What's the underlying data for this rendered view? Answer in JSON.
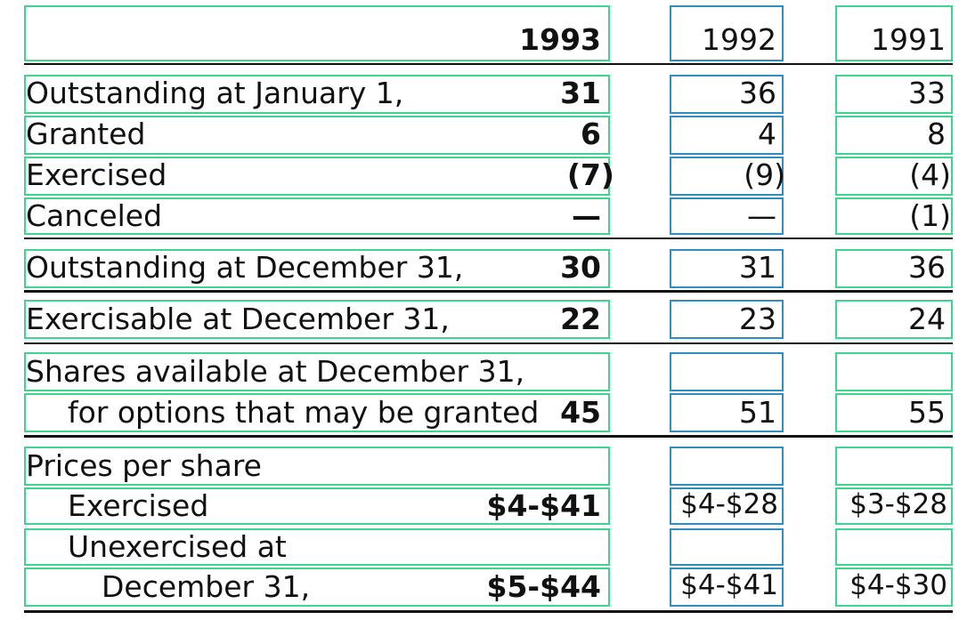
{
  "header": {
    "y1993": "1993",
    "y1992": "1992",
    "y1991": "1991"
  },
  "rows": [
    {
      "label": "Outstanding at January 1,",
      "v1993": "31",
      "v1992": "36",
      "v1991": "33"
    },
    {
      "label": "Granted",
      "v1993": "6",
      "v1992": "4",
      "v1991": "8"
    },
    {
      "label": "Exercised",
      "v1993": "(7)",
      "v1992": "(9)",
      "v1991": "(4)"
    },
    {
      "label": "Canceled",
      "v1993": "—",
      "v1992": "—",
      "v1991": "(1)"
    },
    {
      "label": "Outstanding at December 31,",
      "v1993": "30",
      "v1992": "31",
      "v1991": "36"
    },
    {
      "label": "Exercisable at December 31,",
      "v1993": "22",
      "v1992": "23",
      "v1991": "24"
    },
    {
      "label": "Shares available at December 31,",
      "v1993": "",
      "v1992": "",
      "v1991": ""
    },
    {
      "label": "for options that may be granted",
      "v1993": "45",
      "v1992": "51",
      "v1991": "55"
    },
    {
      "label": "Prices per share",
      "v1993": "",
      "v1992": "",
      "v1991": ""
    },
    {
      "label": "Exercised",
      "v1993": "$4-$41",
      "v1992": "$4-$28",
      "v1991": "$3-$28"
    },
    {
      "label": "Unexercised at",
      "v1993": "",
      "v1992": "",
      "v1991": ""
    },
    {
      "label": "December 31,",
      "v1993": "$5-$44",
      "v1992": "$4-$41",
      "v1991": "$4-$30"
    }
  ],
  "colors": {
    "green_box": "#3dd68c",
    "blue_box": "#2e8fb8",
    "text": "#111111"
  }
}
